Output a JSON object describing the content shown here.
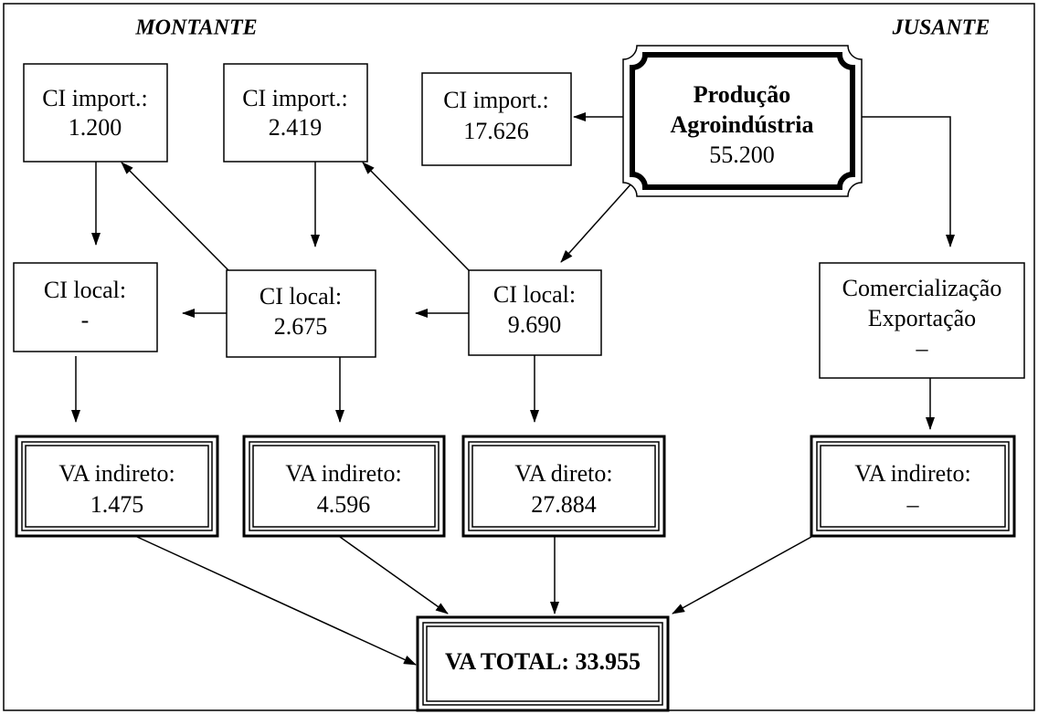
{
  "headers": {
    "left": "MONTANTE",
    "right": "JUSANTE"
  },
  "nodes": [
    {
      "lines": [
        "CI import.:",
        "1.200"
      ]
    },
    {
      "lines": [
        "CI import.:",
        "2.419"
      ]
    },
    {
      "lines": [
        "CI import.:",
        "17.626"
      ]
    },
    {
      "lines": [
        "Produção",
        "Agroindústria",
        "55.200"
      ]
    },
    {
      "lines": [
        "CI local:",
        "-"
      ]
    },
    {
      "lines": [
        "CI local:",
        "2.675"
      ]
    },
    {
      "lines": [
        "CI local:",
        "9.690"
      ]
    },
    {
      "lines": [
        "Comercialização",
        "Exportação",
        "–"
      ]
    },
    {
      "lines": [
        "VA indireto:",
        "1.475"
      ]
    },
    {
      "lines": [
        "VA indireto:",
        "4.596"
      ]
    },
    {
      "lines": [
        "VA direto:",
        "27.884"
      ]
    },
    {
      "lines": [
        "VA indireto:",
        "–"
      ]
    },
    {
      "lines": [
        "VA TOTAL: 33.955"
      ]
    }
  ]
}
